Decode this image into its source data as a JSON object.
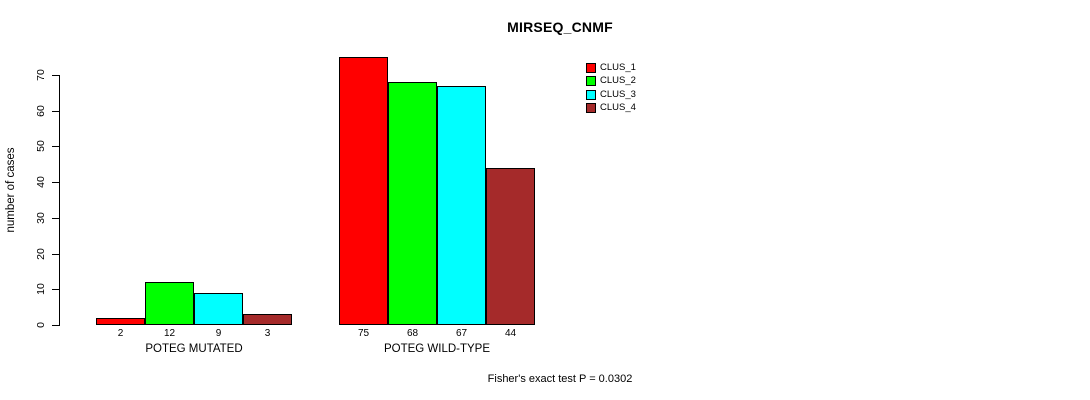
{
  "chart_data": {
    "type": "bar",
    "title": "MIRSEQ_CNMF",
    "ylabel": "number of cases",
    "xlabel": "",
    "ylim": [
      0,
      70
    ],
    "yticks": [
      0,
      10,
      20,
      30,
      40,
      50,
      60,
      70
    ],
    "grid": false,
    "legend_position": "top-right",
    "categories": [
      "POTEG MUTATED",
      "POTEG WILD-TYPE"
    ],
    "series": [
      {
        "name": "CLUS_1",
        "color": "#FF0000",
        "values": [
          2,
          75
        ]
      },
      {
        "name": "CLUS_2",
        "color": "#00FF00",
        "values": [
          12,
          68
        ]
      },
      {
        "name": "CLUS_3",
        "color": "#00FFFF",
        "values": [
          9,
          67
        ]
      },
      {
        "name": "CLUS_4",
        "color": "#A52A2A",
        "values": [
          3,
          44
        ]
      }
    ],
    "bar_value_labels": {
      "POTEG MUTATED": [
        2,
        12,
        9,
        3
      ],
      "POTEG WILD-TYPE": [
        75,
        68,
        67,
        44
      ]
    },
    "annotation": "Fisher's exact test P = 0.0302",
    "axis_color": "#000000",
    "text_color": "#000000"
  }
}
